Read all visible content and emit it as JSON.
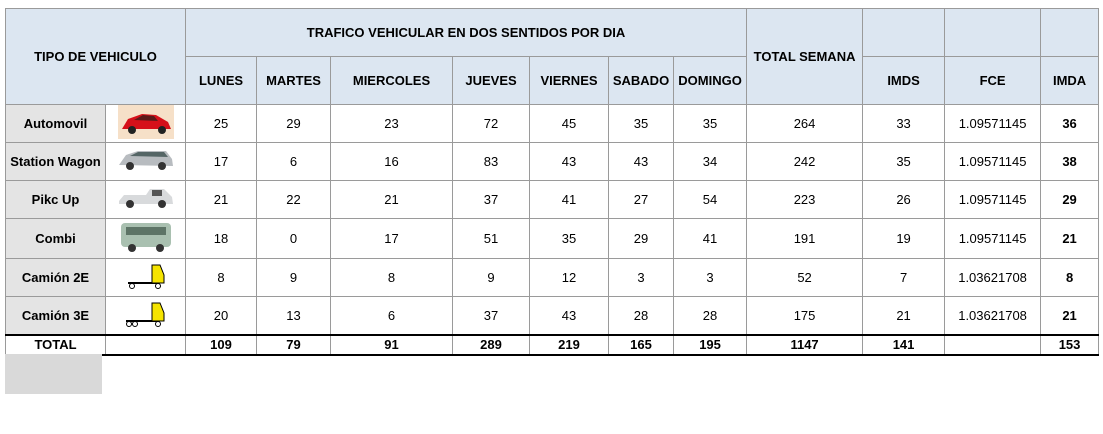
{
  "table": {
    "title": "TRAFICO VEHICULAR EN DOS SENTIDOS POR DIA",
    "vehicle_header": "TIPO DE VEHICULO",
    "total_header": "TOTAL SEMANA",
    "days": [
      "LUNES",
      "MARTES",
      "MIERCOLES",
      "JUEVES",
      "VIERNES",
      "SABADO",
      "DOMINGO"
    ],
    "extra": [
      "IMDS",
      "FCE",
      "IMDA"
    ],
    "rows": [
      [
        "Automovil",
        25,
        29,
        23,
        72,
        45,
        35,
        35,
        264,
        33,
        1.09571145,
        36
      ],
      [
        "Station Wagon",
        17,
        6,
        16,
        83,
        43,
        43,
        34,
        242,
        35,
        1.09571145,
        38
      ],
      [
        "Pikc Up",
        21,
        22,
        21,
        37,
        41,
        27,
        54,
        223,
        26,
        1.09571145,
        29
      ],
      [
        "Combi",
        18,
        0,
        17,
        51,
        35,
        29,
        41,
        191,
        19,
        1.09571145,
        21
      ],
      [
        "Camión 2E",
        8,
        9,
        8,
        9,
        12,
        3,
        3,
        52,
        7,
        1.03621708,
        8
      ],
      [
        "Camión 3E",
        20,
        13,
        6,
        37,
        43,
        28,
        28,
        175,
        21,
        1.03621708,
        21
      ]
    ],
    "total": [
      "TOTAL",
      109,
      79,
      91,
      289,
      219,
      165,
      195,
      1147,
      141,
      null,
      153
    ]
  }
}
